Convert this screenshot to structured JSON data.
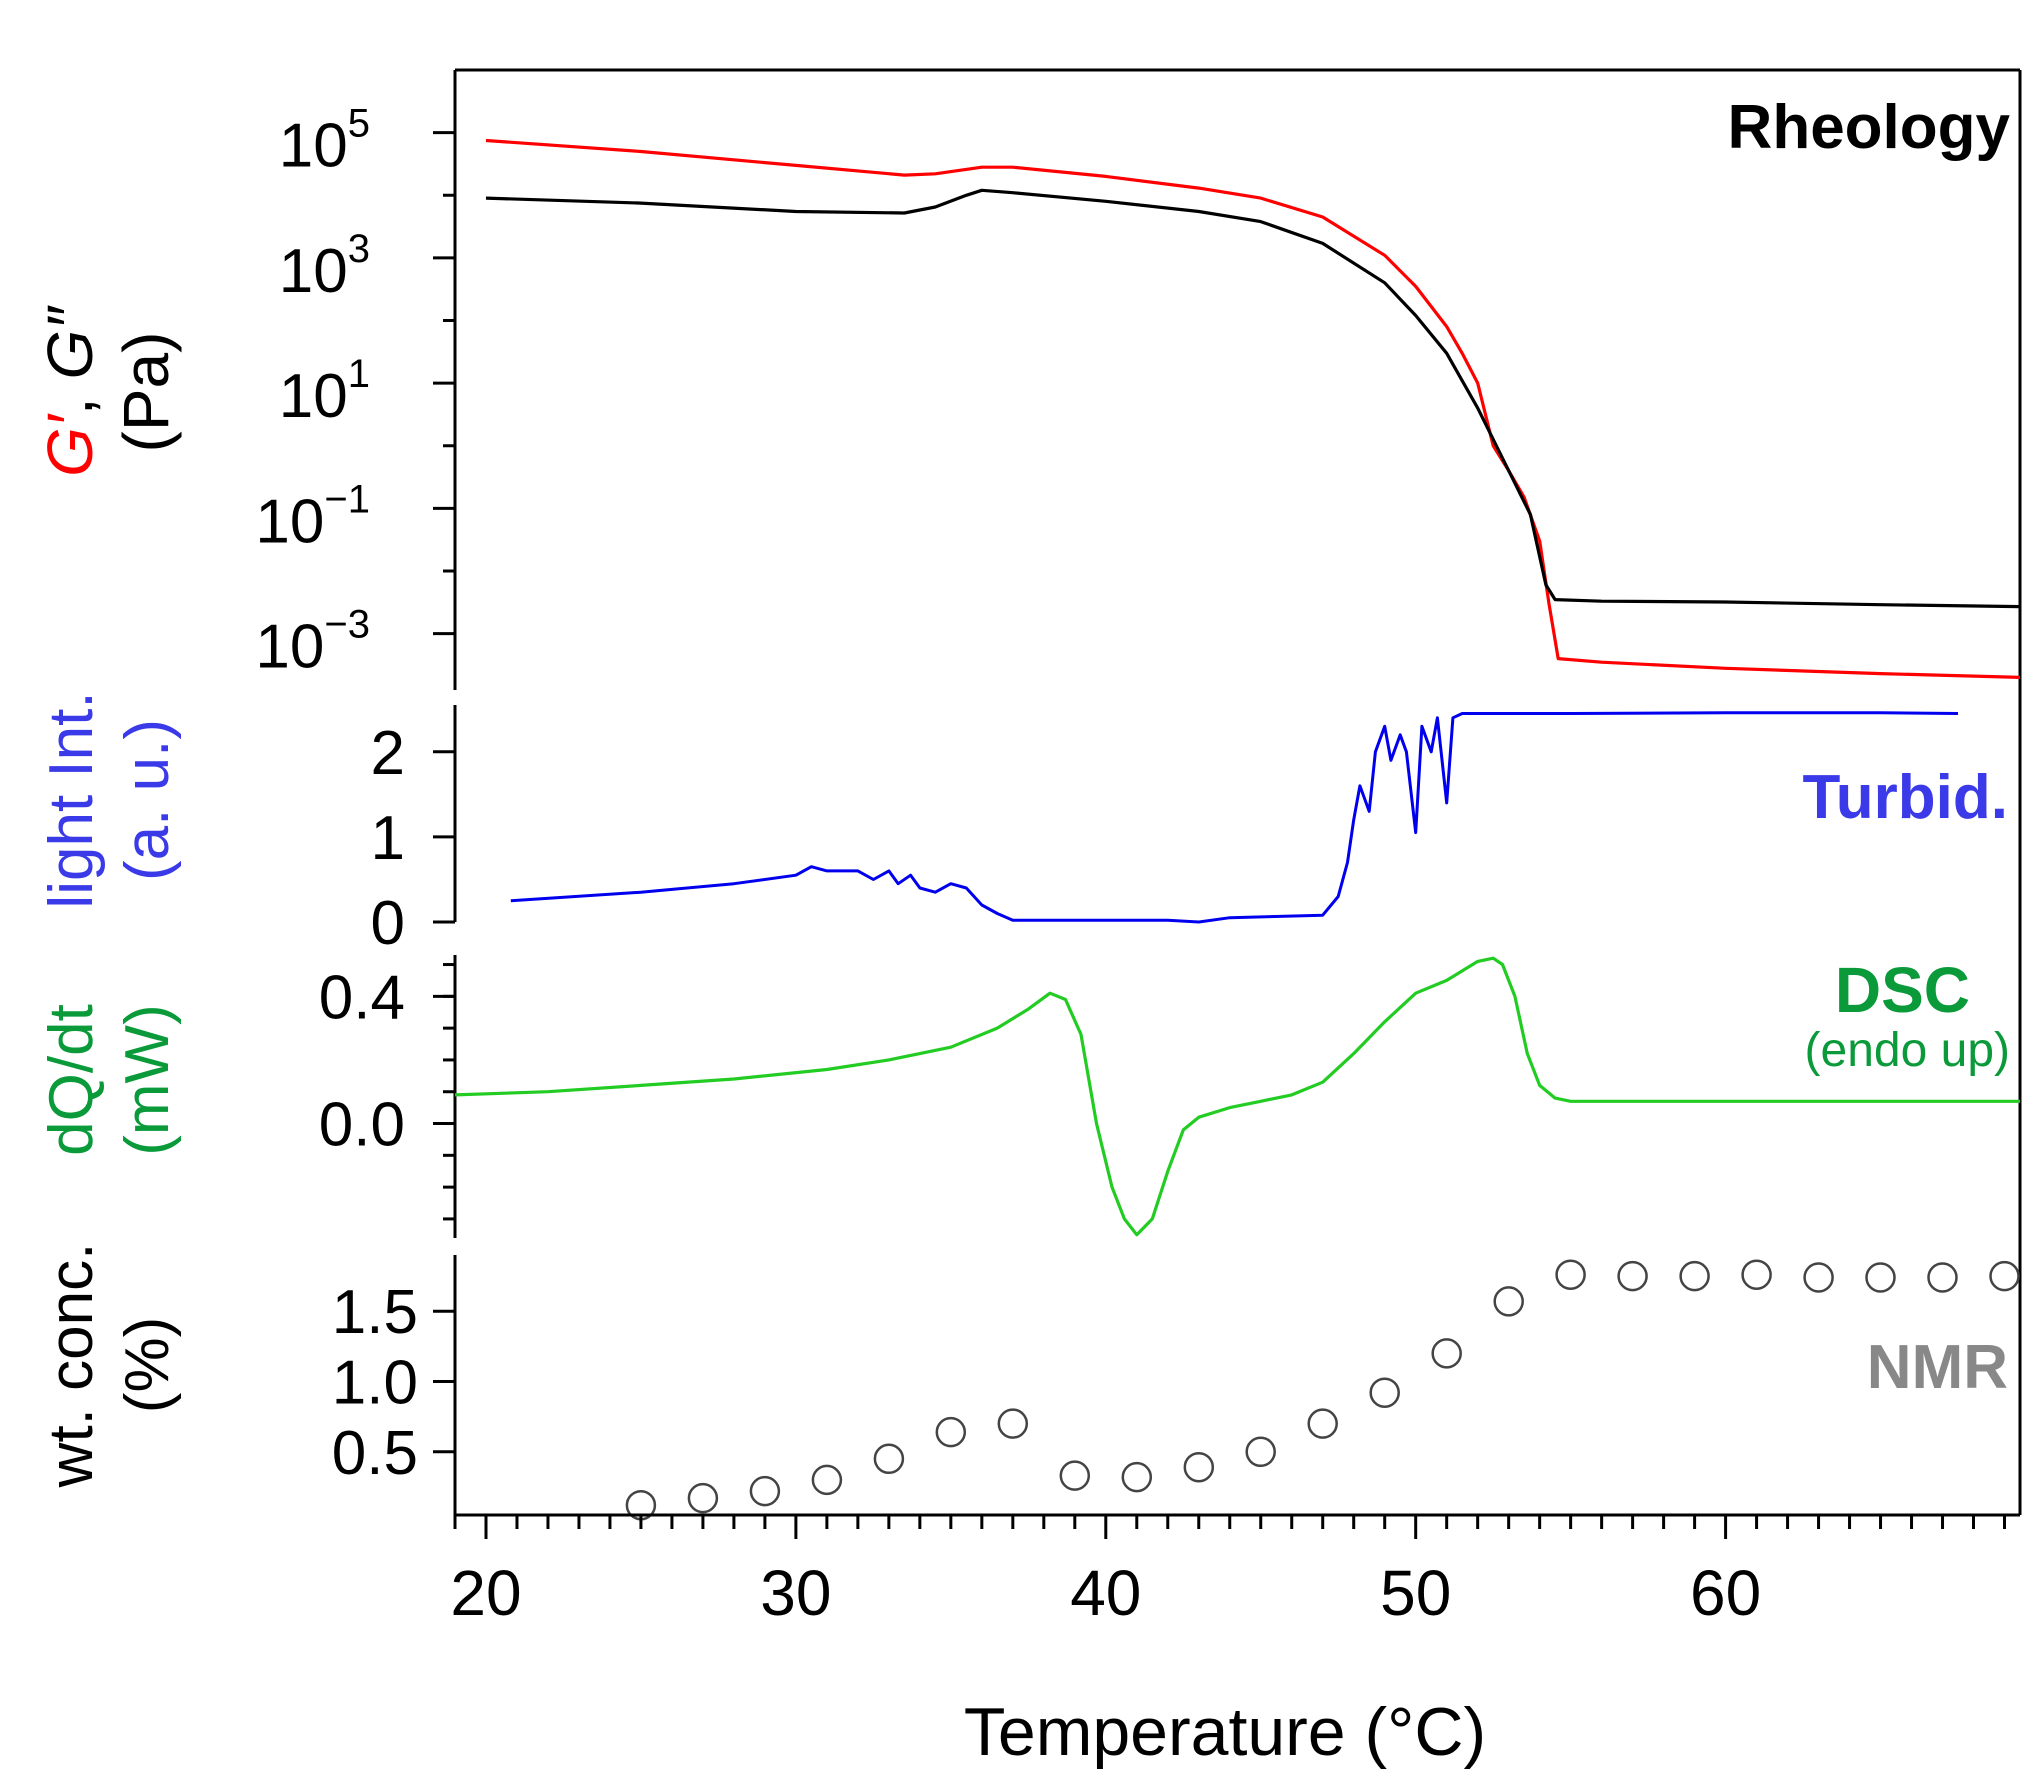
{
  "chart_data": {
    "type": "line",
    "x_axis": {
      "label": "Temperature (°C)",
      "range": [
        19,
        69.5
      ],
      "ticks": [
        20,
        30,
        40,
        50,
        60
      ],
      "tick_labels": [
        "20",
        "30",
        "40",
        "50",
        "60"
      ],
      "minor_step": 1
    },
    "colors": {
      "g_prime": "#ff0000",
      "g_double_prime": "#000000",
      "turbidity": "#0000ee",
      "dsc": "#22cc22",
      "nmr": "#444444",
      "turbid_text": "#3a3ae8",
      "dsc_text": "#0a9a3a",
      "nmr_text": "#888888"
    },
    "panels": [
      {
        "id": "rheology",
        "type": "line",
        "title": "Rheology",
        "ylabel_parts": [
          "G′",
          ", ",
          "G″",
          "(Pa)"
        ],
        "yscale": "log",
        "ylim_exponents": [
          -3.9,
          6.0
        ],
        "tick_labels": [
          {
            "base": "10",
            "exp": "5",
            "value": 100000
          },
          {
            "base": "10",
            "exp": "3",
            "value": 1000
          },
          {
            "base": "10",
            "exp": "1",
            "value": 10
          },
          {
            "base": "10",
            "exp": "−1",
            "value": 0.1
          },
          {
            "base": "10",
            "exp": "−3",
            "value": 0.001
          }
        ],
        "series": [
          {
            "name": "G′",
            "color_key": "g_prime",
            "x": [
              20,
              25,
              30,
              33.5,
              34.5,
              36,
              37,
              40,
              43,
              45,
              47,
              49,
              50,
              51,
              51.5,
              52,
              52.5,
              53,
              53.5,
              54,
              54.3,
              54.6,
              56,
              60,
              65,
              69.5
            ],
            "y": [
              75000,
              50000,
              30000,
              21000,
              22000,
              28000,
              28000,
              20000,
              13000,
              9000,
              4500,
              1100,
              350,
              80,
              30,
              10,
              1.0,
              0.4,
              0.15,
              0.03,
              0.003,
              0.0004,
              0.00035,
              0.00028,
              0.00023,
              0.0002
            ]
          },
          {
            "name": "G″",
            "color_key": "g_double_prime",
            "x": [
              20,
              25,
              30,
              33.5,
              34.5,
              35.5,
              36,
              37,
              40,
              43,
              45,
              47,
              49,
              50,
              51,
              52,
              53,
              53.7,
              54.2,
              54.5,
              56,
              60,
              65,
              69.5
            ],
            "y": [
              9000,
              7500,
              5500,
              5200,
              6500,
              10000,
              12000,
              11000,
              8000,
              5500,
              3800,
              1700,
              400,
              120,
              30,
              4,
              0.4,
              0.08,
              0.006,
              0.0035,
              0.0033,
              0.0032,
              0.0029,
              0.0027
            ]
          }
        ]
      },
      {
        "id": "turbidity",
        "type": "line",
        "title": "Turbid.",
        "ylabel": [
          "light Int.",
          "(a. u.)"
        ],
        "ylim": [
          0,
          2.55
        ],
        "ticks": [
          0,
          1,
          2
        ],
        "tick_labels": [
          "0",
          "1",
          "2"
        ],
        "series": [
          {
            "name": "",
            "color_key": "turbidity",
            "x": [
              20.8,
              25,
              28,
              30,
              30.5,
              31,
              32,
              32.5,
              33,
              33.3,
              33.7,
              34,
              34.5,
              35,
              35.5,
              36,
              36.5,
              37,
              39,
              42,
              43,
              44,
              47,
              47.5,
              47.8,
              48,
              48.2,
              48.5,
              48.7,
              49,
              49.2,
              49.5,
              49.7,
              50,
              50.2,
              50.5,
              50.7,
              51,
              51.2,
              51.5,
              52,
              55,
              60,
              65,
              67.5
            ],
            "y": [
              0.25,
              0.35,
              0.45,
              0.55,
              0.65,
              0.6,
              0.6,
              0.5,
              0.6,
              0.45,
              0.55,
              0.4,
              0.35,
              0.45,
              0.4,
              0.2,
              0.1,
              0.02,
              0.02,
              0.02,
              0.0,
              0.05,
              0.08,
              0.3,
              0.7,
              1.2,
              1.6,
              1.3,
              2.0,
              2.3,
              1.9,
              2.2,
              2.0,
              1.05,
              2.3,
              2.0,
              2.4,
              1.4,
              2.4,
              2.45,
              2.45,
              2.45,
              2.46,
              2.46,
              2.45
            ]
          }
        ]
      },
      {
        "id": "dsc",
        "type": "line",
        "title": "DSC",
        "subtitle": "(endo up)",
        "ylabel": [
          "dQ/dt",
          "(mW)"
        ],
        "ylim": [
          -0.36,
          0.53
        ],
        "ticks": [
          0.0,
          0.4
        ],
        "tick_labels": [
          "0.0",
          "0.4"
        ],
        "minor_step": 0.1,
        "series": [
          {
            "name": "",
            "color_key": "dsc",
            "x": [
              19,
              22,
              25,
              28,
              31,
              33,
              35,
              36.5,
              37.5,
              38.2,
              38.7,
              39.2,
              39.7,
              40.2,
              40.6,
              41,
              41.5,
              42,
              42.5,
              43,
              44,
              45,
              46,
              47,
              48,
              49,
              50,
              51,
              51.5,
              52,
              52.5,
              52.8,
              53.2,
              53.6,
              54,
              54.5,
              55,
              57,
              60,
              65,
              69.5
            ],
            "y": [
              0.09,
              0.1,
              0.12,
              0.14,
              0.17,
              0.2,
              0.24,
              0.3,
              0.36,
              0.41,
              0.39,
              0.28,
              0.0,
              -0.2,
              -0.3,
              -0.35,
              -0.3,
              -0.15,
              -0.02,
              0.02,
              0.05,
              0.07,
              0.09,
              0.13,
              0.22,
              0.32,
              0.41,
              0.45,
              0.48,
              0.51,
              0.52,
              0.5,
              0.4,
              0.22,
              0.12,
              0.08,
              0.07,
              0.07,
              0.07,
              0.07,
              0.07
            ]
          }
        ]
      },
      {
        "id": "nmr",
        "type": "scatter",
        "title": "NMR",
        "ylabel": [
          "wt. conc.",
          "(%)"
        ],
        "ylim": [
          0.05,
          1.9
        ],
        "ticks": [
          0.5,
          1.0,
          1.5
        ],
        "tick_labels": [
          "0.5",
          "1.0",
          "1.5"
        ],
        "series": [
          {
            "name": "",
            "color_key": "nmr",
            "x": [
              25,
              27,
              29,
              31,
              33,
              35,
              37,
              39,
              41,
              43,
              45,
              47,
              49,
              51,
              53,
              55,
              57,
              59,
              61,
              63,
              65,
              67,
              69
            ],
            "y": [
              0.12,
              0.17,
              0.22,
              0.3,
              0.45,
              0.64,
              0.7,
              0.33,
              0.32,
              0.39,
              0.5,
              0.7,
              0.92,
              1.2,
              1.57,
              1.76,
              1.75,
              1.75,
              1.76,
              1.74,
              1.74,
              1.74,
              1.75
            ]
          }
        ]
      }
    ]
  }
}
